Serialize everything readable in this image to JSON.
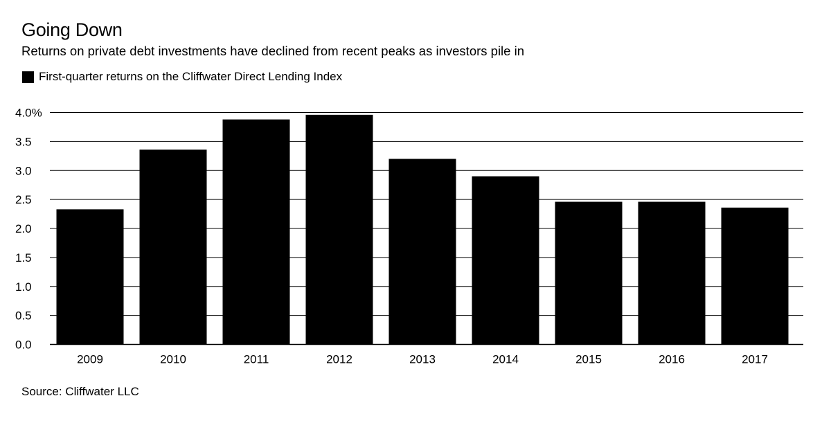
{
  "chart_data": {
    "type": "bar",
    "title": "Going Down",
    "subtitle": "Returns on private debt investments have declined from recent peaks as investors pile in",
    "legend": [
      {
        "label": "First-quarter returns on the Cliffwater Direct Lending Index",
        "color": "#000000"
      }
    ],
    "categories": [
      "2009",
      "2010",
      "2011",
      "2012",
      "2013",
      "2014",
      "2015",
      "2016",
      "2017"
    ],
    "series": [
      {
        "name": "First-quarter returns on the Cliffwater Direct Lending Index",
        "values": [
          2.33,
          3.36,
          3.88,
          3.96,
          3.2,
          2.9,
          2.46,
          2.46,
          2.36
        ]
      }
    ],
    "ylim": [
      0,
      4
    ],
    "yticks": [
      {
        "value": 0,
        "label": "0.0"
      },
      {
        "value": 0.5,
        "label": "0.5"
      },
      {
        "value": 1,
        "label": "1.0"
      },
      {
        "value": 1.5,
        "label": "1.5"
      },
      {
        "value": 2,
        "label": "2.0"
      },
      {
        "value": 2.5,
        "label": "2.5"
      },
      {
        "value": 3,
        "label": "3.0"
      },
      {
        "value": 3.5,
        "label": "3.5"
      },
      {
        "value": 4,
        "label": "4.0%"
      }
    ],
    "xlabel": "",
    "ylabel": "",
    "grid": true,
    "legend_position": "top-left",
    "source": "Source: Cliffwater LLC",
    "colors": {
      "bar": "#000000",
      "gridline": "#000000",
      "background": "#ffffff"
    }
  }
}
